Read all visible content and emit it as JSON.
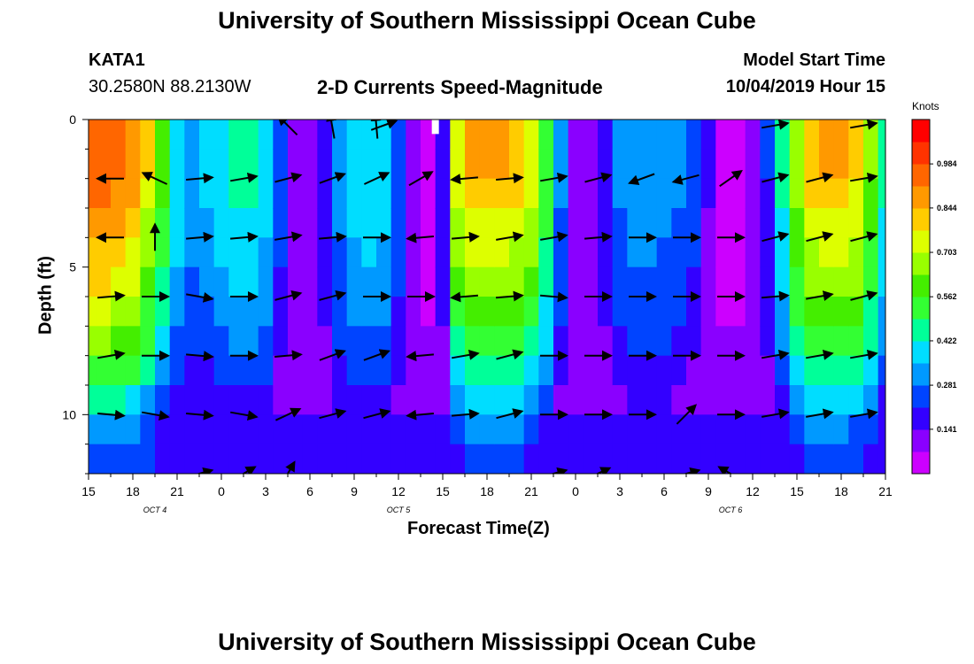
{
  "title_top": "University of Southern Mississippi Ocean Cube",
  "title_bottom": "University of Southern Mississippi Ocean Cube",
  "station": {
    "id": "KATA1",
    "coords": "30.2580N 88.2130W"
  },
  "subtitle": "2-D Currents Speed-Magnitude",
  "model_start": {
    "label": "Model Start Time",
    "value": "10/04/2019 Hour 15"
  },
  "colors": {
    "palette": [
      "#cc00ff",
      "#8a00ff",
      "#3300ff",
      "#0044ff",
      "#0099ff",
      "#00ddff",
      "#00ff99",
      "#33ff33",
      "#44ee00",
      "#99ff00",
      "#ddff00",
      "#ffcc00",
      "#ff9900",
      "#ff6600",
      "#ff3300",
      "#ff0000"
    ],
    "arrow": "#000000",
    "missing": "#ffffff"
  },
  "chart_data": {
    "type": "heatmap",
    "title": "2-D Currents Speed-Magnitude",
    "xlabel": "Forecast Time(Z)",
    "ylabel": "Depth (ft)",
    "x_tick_labels": [
      "15",
      "18",
      "21",
      "0",
      "3",
      "6",
      "9",
      "12",
      "15",
      "18",
      "21",
      "0",
      "3",
      "6",
      "9",
      "12",
      "15",
      "18",
      "21"
    ],
    "x_hours": [
      0,
      54
    ],
    "date_labels": [
      {
        "text": "OCT 4",
        "hour": 4.5
      },
      {
        "text": "OCT 5",
        "hour": 21
      },
      {
        "text": "OCT 6",
        "hour": 43.5
      }
    ],
    "y_range_ft": [
      0,
      12
    ],
    "y_tick_values": [
      0,
      5,
      10
    ],
    "y_minor_values": [
      1,
      2,
      3,
      4,
      6,
      7,
      8,
      9,
      11,
      12
    ],
    "colorbar": {
      "label": "Knots",
      "ticks": [
        "0.984",
        "0.844",
        "0.703",
        "0.562",
        "0.422",
        "0.281",
        "0.141"
      ],
      "tick_values": [
        0.984,
        0.844,
        0.703,
        0.562,
        0.422,
        0.281,
        0.141
      ],
      "range": [
        0.0,
        1.125
      ]
    },
    "grid": {
      "depths_ft": [
        0.5,
        1.5,
        2.5,
        3.5,
        4.5,
        5.5,
        6.5,
        7.5,
        8.5,
        9.5,
        10.5,
        11.5
      ],
      "hours": [
        0,
        1,
        2,
        3,
        4,
        5,
        6,
        7,
        8,
        9,
        10,
        11,
        12,
        13,
        14,
        15,
        16,
        17,
        18,
        19,
        20,
        21,
        22,
        23,
        24,
        25,
        26,
        27,
        28,
        29,
        30,
        31,
        32,
        33,
        34,
        35,
        36,
        37,
        38,
        39,
        40,
        41,
        42,
        43,
        44,
        45,
        46,
        47,
        48,
        49,
        50,
        51,
        52,
        53,
        54
      ],
      "time_profile": [
        0.98,
        0.98,
        0.96,
        0.9,
        0.78,
        0.6,
        0.42,
        0.35,
        0.38,
        0.42,
        0.45,
        0.45,
        0.4,
        0.25,
        0.14,
        0.12,
        0.2,
        0.33,
        0.4,
        0.42,
        0.4,
        0.28,
        0.12,
        0.06,
        0.2,
        0.75,
        0.85,
        0.85,
        0.85,
        0.82,
        0.75,
        0.55,
        0.3,
        0.12,
        0.12,
        0.2,
        0.3,
        0.35,
        0.35,
        0.33,
        0.3,
        0.25,
        0.15,
        0.07,
        0.06,
        0.1,
        0.22,
        0.45,
        0.7,
        0.82,
        0.85,
        0.85,
        0.8,
        0.65,
        0.45
      ],
      "depth_factor": [
        1.0,
        1.0,
        0.95,
        0.9,
        0.85,
        0.8,
        0.72,
        0.65,
        0.55,
        0.45,
        0.35,
        0.28
      ],
      "low_floor": [
        0.04,
        0.05,
        0.05,
        0.06,
        0.06,
        0.07,
        0.07,
        0.08,
        0.1,
        0.14,
        0.16,
        0.2
      ],
      "missing_cells": [
        {
          "hour": 23.5,
          "depth_ft": 0.25
        }
      ]
    },
    "arrows": {
      "depths_ft": [
        2,
        4,
        6,
        8,
        10
      ],
      "times": [
        1.5,
        4.5,
        7.5,
        10.5,
        13.5,
        16.5,
        19.5,
        22.5,
        25.5,
        28.5,
        31.5,
        34.5,
        37.5,
        40.5,
        43.5,
        46.5,
        49.5,
        52.5
      ],
      "dir_deg": [
        [
          180,
          155,
          5,
          10,
          15,
          20,
          25,
          30,
          185,
          5,
          10,
          15,
          200,
          195,
          35,
          15,
          15,
          10
        ],
        [
          180,
          90,
          5,
          5,
          10,
          5,
          0,
          185,
          5,
          10,
          10,
          5,
          0,
          0,
          0,
          15,
          15,
          15
        ],
        [
          5,
          0,
          -10,
          0,
          15,
          15,
          0,
          0,
          185,
          5,
          -5,
          0,
          0,
          0,
          0,
          5,
          10,
          15
        ],
        [
          10,
          0,
          -5,
          0,
          5,
          20,
          20,
          185,
          10,
          15,
          0,
          0,
          0,
          0,
          0,
          10,
          10,
          10
        ],
        [
          -5,
          -10,
          -5,
          -10,
          25,
          15,
          15,
          185,
          5,
          15,
          0,
          0,
          0,
          45,
          0,
          10,
          10,
          10
        ]
      ],
      "deep_row": {
        "depth_ft": 12,
        "times": [
          7.5,
          10.5,
          13.5,
          31.5,
          34.5,
          40.5,
          43.5
        ],
        "dir_deg": [
          15,
          30,
          60,
          15,
          25,
          15,
          150
        ]
      },
      "surface_row": {
        "depth_ft": 0.2,
        "times": [
          13.5,
          16.5,
          19.5,
          20.0,
          46.5,
          52.5
        ],
        "dir_deg": [
          135,
          100,
          95,
          20,
          10,
          10
        ]
      }
    }
  }
}
